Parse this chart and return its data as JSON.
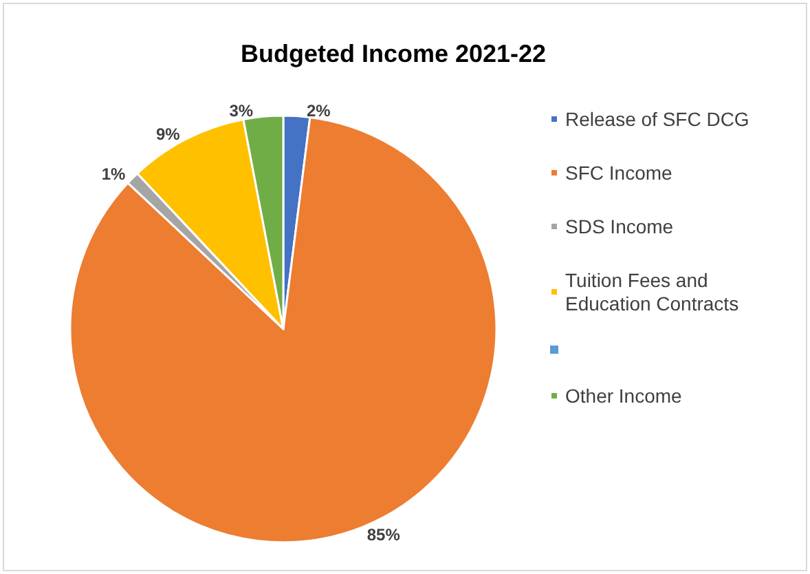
{
  "chart_data": {
    "type": "pie",
    "title": "Budgeted Income 2021-22",
    "categories": [
      "Release of SFC DCG",
      "SFC Income",
      "SDS Income",
      "Tuition Fees and Education Contracts",
      null,
      "Other Income"
    ],
    "values": [
      2,
      85,
      1,
      9,
      0,
      3
    ],
    "value_labels": [
      "2%",
      "85%",
      "1%",
      "9%",
      null,
      "3%"
    ],
    "colors": [
      "#4472c4",
      "#ed7d31",
      "#a5a5a5",
      "#ffc000",
      "#5b9bd5",
      "#70ad47"
    ],
    "legend": "right"
  }
}
